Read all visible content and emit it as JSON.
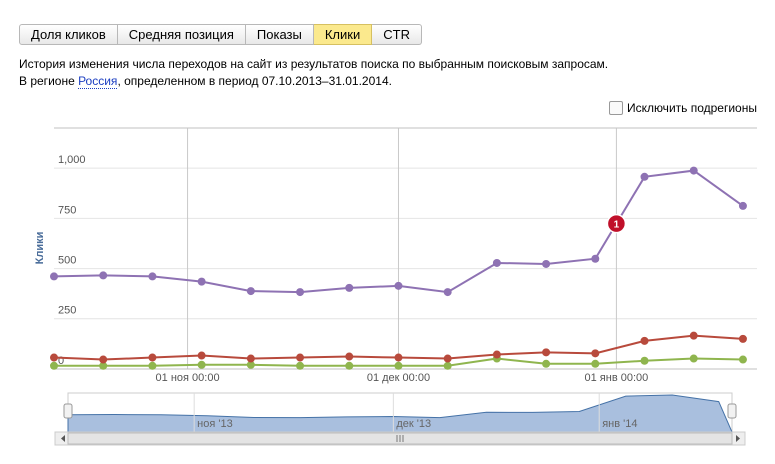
{
  "tabs": [
    "Доля кликов",
    "Средняя позиция",
    "Показы",
    "Клики",
    "CTR"
  ],
  "active_tab": 3,
  "description": {
    "line1": "История изменения числа переходов на сайт из результатов поиска по выбранным поисковым запросам.",
    "prefix": "В регионе ",
    "region": "Россия",
    "suffix": ", определенном в период 07.10.2013–31.01.2014."
  },
  "checkbox": "Исключить подрегионы",
  "chart_data": {
    "type": "line",
    "ylabel": "Клики",
    "x": [
      "2013-10-13",
      "2013-10-20",
      "2013-10-27",
      "2013-11-03",
      "2013-11-10",
      "2013-11-17",
      "2013-11-24",
      "2013-12-01",
      "2013-12-08",
      "2013-12-15",
      "2013-12-22",
      "2013-12-29",
      "2014-01-05",
      "2014-01-12",
      "2014-01-19"
    ],
    "series": [
      {
        "color": "#8e72b3",
        "values": [
          461,
          466,
          461,
          435,
          388,
          383,
          404,
          414,
          383,
          528,
          523,
          549,
          957,
          988,
          812
        ]
      },
      {
        "color": "#b84a3c",
        "values": [
          57,
          47,
          57,
          67,
          52,
          57,
          62,
          57,
          52,
          72,
          83,
          78,
          140,
          166,
          150
        ]
      },
      {
        "color": "#8fb54e",
        "values": [
          16,
          16,
          16,
          21,
          21,
          16,
          16,
          16,
          16,
          52,
          26,
          26,
          41,
          52,
          47
        ]
      }
    ],
    "xlim": [
      "2013-10-13",
      "2014-01-21"
    ],
    "xticks": [
      {
        "value": "2013-11-01",
        "label": "01 ноя 00:00"
      },
      {
        "value": "2013-12-01",
        "label": "01 дек 00:00"
      },
      {
        "value": "2014-01-01",
        "label": "01 янв 00:00"
      }
    ],
    "ylim": [
      0,
      1200
    ],
    "yticks": [
      0,
      250,
      500,
      750,
      {
        "value": 1000,
        "label": "1,000"
      }
    ],
    "grid": true,
    "flags": [
      {
        "x": "2014-01-01",
        "label": "1",
        "color": "#c0102a"
      }
    ],
    "navigator": {
      "xticks": [
        {
          "value": "2013-11-01",
          "label": "ноя '13"
        },
        {
          "value": "2013-12-01",
          "label": "дек '13"
        },
        {
          "value": "2014-01-01",
          "label": "янв '14"
        }
      ]
    }
  }
}
